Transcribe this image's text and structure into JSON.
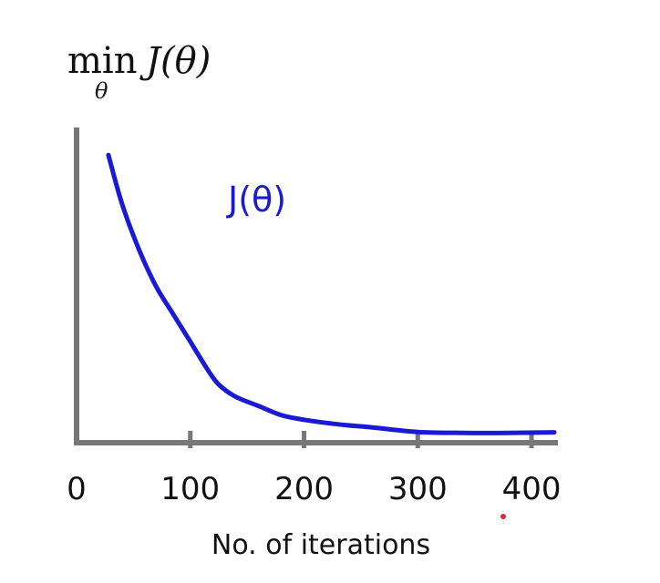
{
  "chart_data": {
    "type": "line",
    "title_main": "min",
    "title_sub": "θ",
    "title_expr": "J(θ)",
    "xlabel": "No. of iterations",
    "ylabel": "",
    "series_annotation": "J(θ)",
    "xlim": [
      0,
      420
    ],
    "ylim": [
      0,
      1
    ],
    "xticks": [
      0,
      100,
      200,
      300,
      400
    ],
    "xtick_labels": [
      "0",
      "100",
      "200",
      "300",
      "400"
    ],
    "grid": false,
    "colors": {
      "line": "#1a1ad6",
      "axis": "#777777",
      "text": "#111111"
    },
    "series": [
      {
        "x": [
          28,
          40,
          55,
          70,
          85,
          100,
          115,
          125,
          140,
          160,
          180,
          200,
          230,
          260,
          300,
          340,
          380,
          420
        ],
        "y": [
          0.94,
          0.78,
          0.63,
          0.51,
          0.42,
          0.33,
          0.24,
          0.19,
          0.15,
          0.12,
          0.09,
          0.075,
          0.06,
          0.05,
          0.035,
          0.032,
          0.032,
          0.034
        ]
      }
    ]
  }
}
